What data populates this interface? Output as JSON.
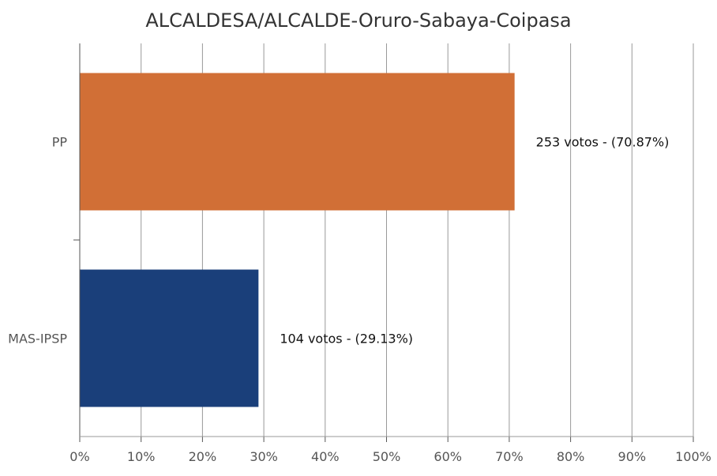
{
  "chart_data": {
    "type": "bar",
    "orientation": "horizontal",
    "title": "ALCALDESA/ALCALDE-Oruro-Sabaya-Coipasa",
    "categories": [
      "PP",
      "MAS-IPSP"
    ],
    "values": [
      70.87,
      29.13
    ],
    "votes": [
      253,
      104
    ],
    "data_labels": [
      "253 votos - (70.87%)",
      "104 votos - (29.13%)"
    ],
    "xlim": [
      0,
      100
    ],
    "x_ticks": [
      0,
      10,
      20,
      30,
      40,
      50,
      60,
      70,
      80,
      90,
      100
    ],
    "x_tick_labels": [
      "0%",
      "10%",
      "20%",
      "30%",
      "40%",
      "50%",
      "60%",
      "70%",
      "80%",
      "90%",
      "100%"
    ],
    "grid": true,
    "legend": "none",
    "colors": {
      "PP": "#D16F36",
      "MAS-IPSP": "#1A3F7A",
      "grid": "#999999",
      "axis": "#555555",
      "text": "#333333",
      "tick_text": "#555555"
    }
  }
}
